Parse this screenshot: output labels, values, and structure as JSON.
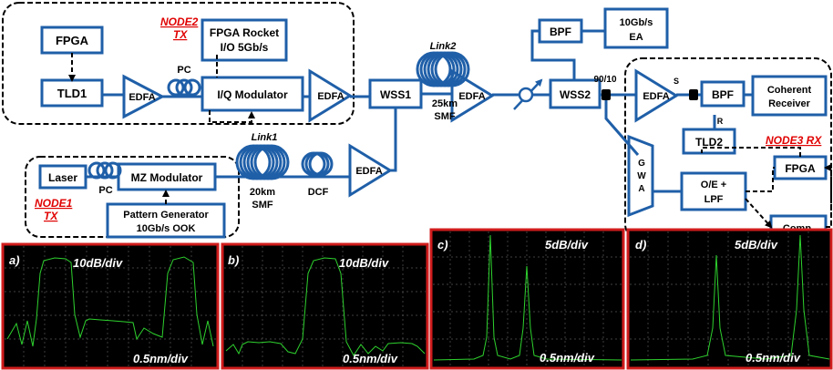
{
  "node2": {
    "label": "NODE2",
    "sub": "TX"
  },
  "node1": {
    "label": "NODE1",
    "sub": "TX"
  },
  "node3": {
    "label": "NODE3 RX"
  },
  "blocks": {
    "fpga": "FPGA",
    "tld1": "TLD1",
    "edfa": "EDFA",
    "pc": "PC",
    "fpga_rocket_1": "FPGA Rocket",
    "fpga_rocket_2": "I/O 5Gb/s",
    "iq_mod": "I/Q Modulator",
    "wss1": "WSS1",
    "wss2": "WSS2",
    "link2": "Link2",
    "link1": "Link1",
    "km25": "25km",
    "smf": "SMF",
    "km20": "20km",
    "dcf": "DCF",
    "bpf": "BPF",
    "ea_1": "10Gb/s",
    "ea_2": "EA",
    "split": "90/10",
    "s": "S",
    "r": "R",
    "coh_1": "Coherent",
    "coh_2": "Receiver",
    "tld2": "TLD2",
    "oe_1": "O/E +",
    "oe_2": "LPF",
    "comp": "Comp.",
    "gwa_g": "G",
    "gwa_w": "W",
    "gwa_a": "A",
    "laser": "Laser",
    "mz_mod": "MZ Modulator",
    "pg_1": "Pattern Generator",
    "pg_2": "10Gb/s OOK"
  },
  "colors": {
    "block": "#1f5fa8",
    "node_label": "#e00000",
    "panel_border": "#d01c1c",
    "trace": "#2ed12e"
  },
  "panels": [
    {
      "id": "a",
      "label": "a)",
      "scale": "10dB/div",
      "xscale": "0.5nm/div"
    },
    {
      "id": "b",
      "label": "b)",
      "scale": "10dB/div",
      "xscale": "0.5nm/div"
    },
    {
      "id": "c",
      "label": "c)",
      "scale": "5dB/div",
      "xscale": "0.5nm/div"
    },
    {
      "id": "d",
      "label": "d)",
      "scale": "5dB/div",
      "xscale": "0.5nm/div"
    }
  ]
}
